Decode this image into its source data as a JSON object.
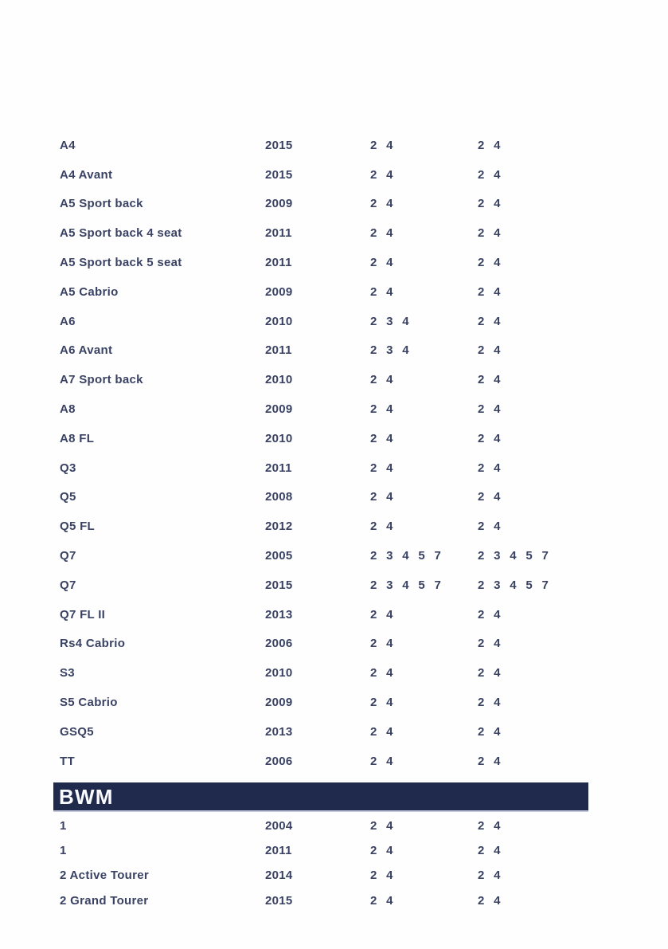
{
  "colors": {
    "row_text": "#3a4264",
    "band_bg": "#1f2a4c",
    "band_text": "#fafbff",
    "band_rule": "#c3c9da",
    "page_bg": "#fefefe"
  },
  "audi_section": {
    "rows": [
      {
        "model": "A4",
        "year": "2015",
        "codes_a": "2 4",
        "codes_b": "2 4"
      },
      {
        "model": "A4 Avant",
        "year": "2015",
        "codes_a": "2 4",
        "codes_b": "2 4"
      },
      {
        "model": "A5 Sport back",
        "year": "2009",
        "codes_a": "2 4",
        "codes_b": "2 4"
      },
      {
        "model": "A5 Sport back 4 seat",
        "year": "2011",
        "codes_a": "2 4",
        "codes_b": "2 4"
      },
      {
        "model": "A5 Sport back 5 seat",
        "year": "2011",
        "codes_a": "2 4",
        "codes_b": "2 4"
      },
      {
        "model": "A5 Cabrio",
        "year": "2009",
        "codes_a": "2 4",
        "codes_b": "2 4"
      },
      {
        "model": "A6",
        "year": "2010",
        "codes_a": "2 3 4",
        "codes_b": "2 4"
      },
      {
        "model": "A6 Avant",
        "year": "2011",
        "codes_a": "2 3 4",
        "codes_b": "2 4"
      },
      {
        "model": "A7 Sport back",
        "year": "2010",
        "codes_a": "2 4",
        "codes_b": "2 4"
      },
      {
        "model": "A8",
        "year": "2009",
        "codes_a": "2 4",
        "codes_b": "2 4"
      },
      {
        "model": "A8 FL",
        "year": "2010",
        "codes_a": "2 4",
        "codes_b": "2 4"
      },
      {
        "model": "Q3",
        "year": "2011",
        "codes_a": "2 4",
        "codes_b": "2 4"
      },
      {
        "model": "Q5",
        "year": "2008",
        "codes_a": "2 4",
        "codes_b": "2 4"
      },
      {
        "model": "Q5 FL",
        "year": "2012",
        "codes_a": "2 4",
        "codes_b": "2 4"
      },
      {
        "model": "Q7",
        "year": "2005",
        "codes_a": "2 3 4 5 7",
        "codes_b": "2 3 4 5 7"
      },
      {
        "model": "Q7",
        "year": "2015",
        "codes_a": "2 3 4 5 7",
        "codes_b": "2 3 4 5 7"
      },
      {
        "model": "Q7 FL II",
        "year": "2013",
        "codes_a": "2 4",
        "codes_b": "2 4"
      },
      {
        "model": "Rs4 Cabrio",
        "year": "2006",
        "codes_a": "2 4",
        "codes_b": "2 4"
      },
      {
        "model": "S3",
        "year": "2010",
        "codes_a": "2 4",
        "codes_b": "2 4"
      },
      {
        "model": "S5 Cabrio",
        "year": "2009",
        "codes_a": "2 4",
        "codes_b": "2 4"
      },
      {
        "model": "GSQ5",
        "year": "2013",
        "codes_a": "2 4",
        "codes_b": "2 4"
      },
      {
        "model": "TT",
        "year": "2006",
        "codes_a": "2 4",
        "codes_b": "2 4"
      }
    ]
  },
  "bmw_section": {
    "header": "BWM",
    "rows": [
      {
        "model": "1",
        "year": "2004",
        "codes_a": "2 4",
        "codes_b": "2 4"
      },
      {
        "model": "1",
        "year": "2011",
        "codes_a": "2 4",
        "codes_b": "2 4"
      },
      {
        "model": "2 Active Tourer",
        "year": "2014",
        "codes_a": "2 4",
        "codes_b": "2 4"
      },
      {
        "model": "2 Grand Tourer",
        "year": "2015",
        "codes_a": "2 4",
        "codes_b": "2 4"
      }
    ]
  }
}
